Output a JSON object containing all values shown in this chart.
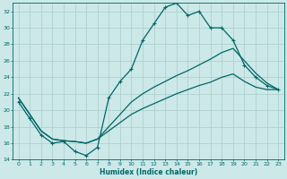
{
  "xlabel": "Humidex (Indice chaleur)",
  "background_color": "#cce8e8",
  "grid_color": "#aacccc",
  "line_color": "#006666",
  "xlim": [
    -0.5,
    23.5
  ],
  "ylim": [
    14,
    33
  ],
  "xticks": [
    0,
    1,
    2,
    3,
    4,
    5,
    6,
    7,
    8,
    9,
    10,
    11,
    12,
    13,
    14,
    15,
    16,
    17,
    18,
    19,
    20,
    21,
    22,
    23
  ],
  "yticks": [
    14,
    16,
    18,
    20,
    22,
    24,
    26,
    28,
    30,
    32
  ],
  "line1_x": [
    0,
    1,
    2,
    3,
    4,
    5,
    6,
    7,
    8,
    9,
    10,
    11,
    12,
    13,
    14,
    15,
    16,
    17,
    18,
    19,
    20,
    21,
    22,
    23
  ],
  "line1_y": [
    21.0,
    19.0,
    17.0,
    16.0,
    16.2,
    15.0,
    14.5,
    15.5,
    21.5,
    23.5,
    25.0,
    28.5,
    30.5,
    32.5,
    33.0,
    31.5,
    32.0,
    30.0,
    30.0,
    28.5,
    25.5,
    24.0,
    23.0,
    22.5
  ],
  "line2_x": [
    0,
    1,
    2,
    3,
    4,
    5,
    6,
    7,
    8,
    9,
    10,
    11,
    12,
    13,
    14,
    15,
    16,
    17,
    18,
    19,
    20,
    21,
    22,
    23
  ],
  "line2_y": [
    21.5,
    19.5,
    17.5,
    16.5,
    16.3,
    16.2,
    16.0,
    16.5,
    18.0,
    19.5,
    21.0,
    22.0,
    22.8,
    23.5,
    24.2,
    24.8,
    25.5,
    26.2,
    27.0,
    27.5,
    26.0,
    24.5,
    23.3,
    22.5
  ],
  "line3_x": [
    0,
    1,
    2,
    3,
    4,
    5,
    6,
    7,
    8,
    9,
    10,
    11,
    12,
    13,
    14,
    15,
    16,
    17,
    18,
    19,
    20,
    21,
    22,
    23
  ],
  "line3_y": [
    21.5,
    19.5,
    17.5,
    16.5,
    16.3,
    16.2,
    16.0,
    16.5,
    17.5,
    18.5,
    19.5,
    20.2,
    20.8,
    21.4,
    22.0,
    22.5,
    23.0,
    23.4,
    24.0,
    24.4,
    23.5,
    22.8,
    22.5,
    22.5
  ]
}
